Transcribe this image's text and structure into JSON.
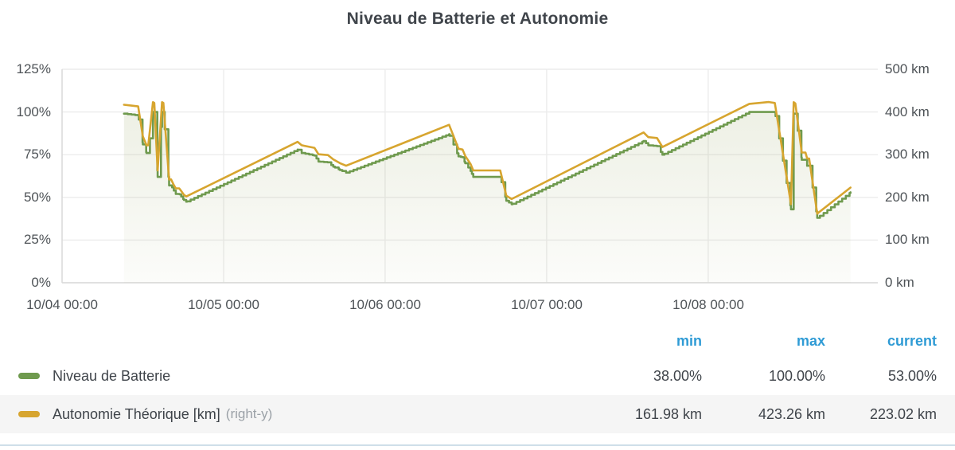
{
  "legend": {
    "headers": {
      "min": "min",
      "max": "max",
      "current": "current"
    },
    "header_color": "#2f9bd5"
  },
  "chart_data": {
    "type": "line",
    "title": "Niveau de Batterie et Autonomie",
    "legend_position": "bottom-table",
    "grid": true,
    "x_axis": {
      "tick_labels": [
        "10/04 00:00",
        "10/05 00:00",
        "10/06 00:00",
        "10/07 00:00",
        "10/08 00:00"
      ],
      "tick_hours": [
        0,
        24,
        48,
        72,
        96
      ],
      "hours_total": 121.2,
      "data_start_hour": 9.2,
      "data_end_hour": 117.15
    },
    "y_left": {
      "unit": "%",
      "range": [
        0,
        125
      ],
      "ticks": [
        "125%",
        "100%",
        "75%",
        "50%",
        "25%",
        "0%"
      ],
      "tick_values": [
        125,
        100,
        75,
        50,
        25,
        0
      ]
    },
    "y_right": {
      "unit": "km",
      "range": [
        0,
        500
      ],
      "ticks": [
        "500 km",
        "400 km",
        "300 km",
        "200 km",
        "100 km",
        "0 km"
      ],
      "tick_values": [
        500,
        400,
        300,
        200,
        100,
        0
      ]
    },
    "series": [
      {
        "name": "Niveau de Batterie",
        "axis": "left",
        "color": "#6f9a4e",
        "style": "steps",
        "fill": true,
        "stats": {
          "min": "38.00%",
          "max": "100.00%",
          "current": "53.00%"
        },
        "points": [
          [
            9.2,
            99
          ],
          [
            10.3,
            98.5
          ],
          [
            11.3,
            98
          ],
          [
            12.0,
            81
          ],
          [
            12.55,
            76
          ],
          [
            12.8,
            76
          ],
          [
            13.5,
            100
          ],
          [
            13.7,
            100
          ],
          [
            14.2,
            62
          ],
          [
            14.85,
            100
          ],
          [
            15.05,
            100
          ],
          [
            15.9,
            57
          ],
          [
            16.2,
            57
          ],
          [
            16.6,
            54
          ],
          [
            16.9,
            52
          ],
          [
            17.4,
            52
          ],
          [
            17.7,
            50.5
          ],
          [
            18.1,
            48.5
          ],
          [
            18.45,
            47.5
          ],
          [
            35.0,
            78
          ],
          [
            35.6,
            76
          ],
          [
            37.5,
            74.5
          ],
          [
            38.1,
            71
          ],
          [
            39.5,
            70.5
          ],
          [
            40.3,
            68
          ],
          [
            41.3,
            66
          ],
          [
            42.2,
            64.5
          ],
          [
            57.5,
            87
          ],
          [
            58.9,
            74
          ],
          [
            59.5,
            73.5
          ],
          [
            59.9,
            70
          ],
          [
            60.7,
            65.5
          ],
          [
            61.1,
            62
          ],
          [
            65.1,
            62
          ],
          [
            66.0,
            48
          ],
          [
            66.8,
            46
          ],
          [
            86.4,
            83
          ],
          [
            87.1,
            80.5
          ],
          [
            88.4,
            80
          ],
          [
            89.2,
            75
          ],
          [
            102.1,
            100
          ],
          [
            105.9,
            100
          ],
          [
            108.3,
            43
          ],
          [
            108.7,
            99
          ],
          [
            108.95,
            99
          ],
          [
            109.9,
            72
          ],
          [
            110.45,
            72
          ],
          [
            110.7,
            68.5
          ],
          [
            111.0,
            68.5
          ],
          [
            112.2,
            38
          ],
          [
            117.15,
            53
          ]
        ]
      },
      {
        "name": "Autonomie Théorique [km]",
        "name_suffix": "(right-y)",
        "axis": "right",
        "color": "#d7a52f",
        "style": "line",
        "fill": false,
        "stats": {
          "min": "161.98 km",
          "max": "423.26 km",
          "current": "223.02 km"
        },
        "points": [
          [
            9.2,
            417
          ],
          [
            10.3,
            415
          ],
          [
            11.3,
            413
          ],
          [
            12.0,
            343
          ],
          [
            12.55,
            322
          ],
          [
            12.8,
            322
          ],
          [
            13.5,
            423
          ],
          [
            13.7,
            421
          ],
          [
            14.2,
            263
          ],
          [
            14.85,
            423
          ],
          [
            15.05,
            421
          ],
          [
            15.9,
            242
          ],
          [
            16.2,
            242
          ],
          [
            16.6,
            229
          ],
          [
            16.9,
            221
          ],
          [
            17.4,
            221
          ],
          [
            17.7,
            215
          ],
          [
            18.1,
            206
          ],
          [
            18.45,
            202
          ],
          [
            35.0,
            330
          ],
          [
            35.6,
            322
          ],
          [
            37.5,
            316
          ],
          [
            38.1,
            301
          ],
          [
            39.5,
            299
          ],
          [
            40.3,
            289
          ],
          [
            41.3,
            280
          ],
          [
            42.2,
            274
          ],
          [
            57.5,
            370
          ],
          [
            58.9,
            314
          ],
          [
            59.5,
            312
          ],
          [
            59.9,
            297
          ],
          [
            60.7,
            278
          ],
          [
            61.1,
            263
          ],
          [
            65.1,
            263
          ],
          [
            66.0,
            204
          ],
          [
            66.8,
            196
          ],
          [
            86.4,
            352
          ],
          [
            87.1,
            341
          ],
          [
            88.4,
            339
          ],
          [
            89.2,
            318
          ],
          [
            102.1,
            419
          ],
          [
            105.0,
            423.26
          ],
          [
            105.9,
            421
          ],
          [
            108.3,
            184
          ],
          [
            108.7,
            423
          ],
          [
            108.95,
            420
          ],
          [
            109.9,
            305
          ],
          [
            110.45,
            305
          ],
          [
            110.7,
            291
          ],
          [
            111.0,
            291
          ],
          [
            112.2,
            161.98
          ],
          [
            117.15,
            223.02
          ]
        ]
      }
    ]
  }
}
